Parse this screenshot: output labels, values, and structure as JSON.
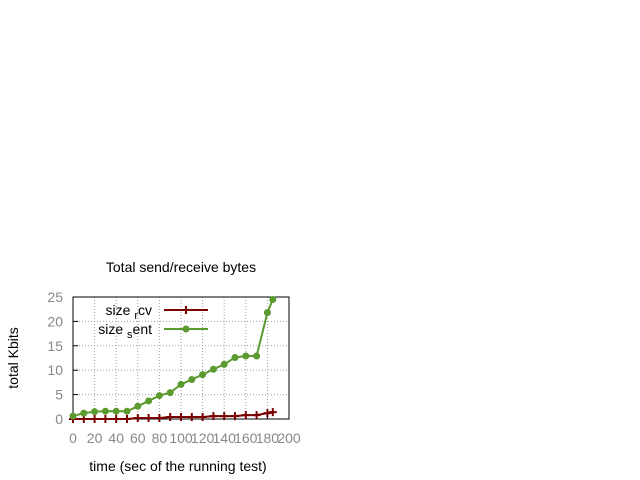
{
  "chart_data": {
    "type": "line",
    "title": "Total send/receive bytes",
    "xlabel": "time (sec of the running test)",
    "ylabel": "total Kbits",
    "xlim": [
      0,
      200
    ],
    "ylim": [
      0,
      25
    ],
    "xticks": [
      0,
      20,
      40,
      60,
      80,
      100,
      120,
      140,
      160,
      180,
      200
    ],
    "yticks": [
      0,
      5,
      10,
      15,
      20,
      25
    ],
    "grid": true,
    "legend_position": "top-left",
    "series": [
      {
        "name": "size_rcv",
        "legend_base": "size",
        "legend_sub": "r",
        "legend_rest": "cv",
        "color": "#7a0000",
        "marker": "plus",
        "x": [
          0,
          10,
          20,
          30,
          40,
          50,
          60,
          70,
          80,
          90,
          100,
          110,
          120,
          130,
          140,
          150,
          160,
          170,
          180,
          185
        ],
        "y": [
          0,
          0,
          0,
          0,
          0,
          0,
          0.2,
          0.2,
          0.2,
          0.4,
          0.4,
          0.4,
          0.4,
          0.6,
          0.6,
          0.6,
          0.8,
          0.8,
          1.2,
          1.4
        ]
      },
      {
        "name": "size_sent",
        "legend_base": "size",
        "legend_sub": "s",
        "legend_rest": "ent",
        "color": "#5a9a2e",
        "marker": "circle",
        "x": [
          0,
          10,
          20,
          30,
          40,
          50,
          60,
          70,
          80,
          90,
          100,
          110,
          120,
          130,
          140,
          150,
          160,
          170,
          180,
          185
        ],
        "y": [
          0.6,
          1.2,
          1.5,
          1.6,
          1.6,
          1.6,
          2.6,
          3.7,
          4.8,
          5.4,
          7.1,
          8.1,
          9.1,
          10.2,
          11.2,
          12.6,
          12.9,
          12.9,
          21.8,
          24.5
        ]
      }
    ]
  }
}
